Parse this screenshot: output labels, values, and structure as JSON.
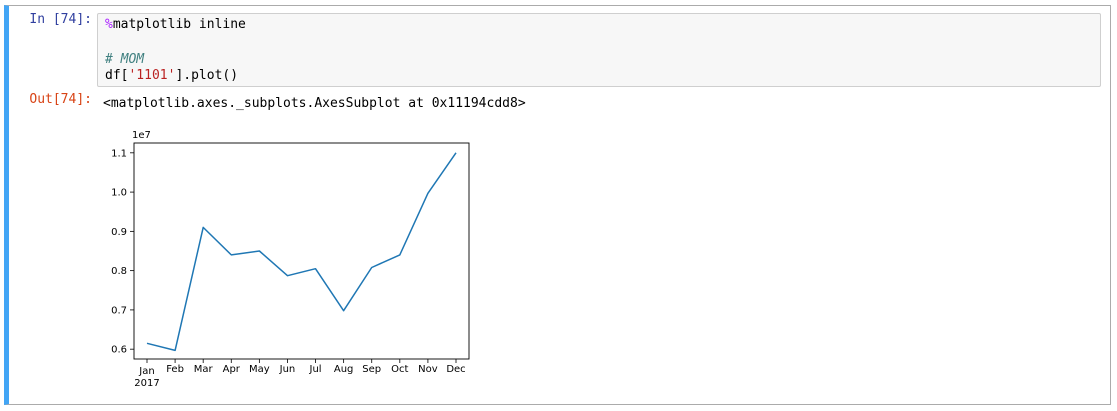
{
  "cell": {
    "in_prompt": "In [74]:",
    "out_prompt": "Out[74]:",
    "code_lines": [
      {
        "parts": [
          {
            "cls": "magic",
            "text": "%"
          },
          {
            "cls": "",
            "text": "matplotlib inline"
          }
        ]
      },
      {
        "parts": []
      },
      {
        "parts": [
          {
            "cls": "comment",
            "text": "# MOM"
          }
        ]
      },
      {
        "parts": [
          {
            "cls": "",
            "text": "df["
          },
          {
            "cls": "str",
            "text": "'1101'"
          },
          {
            "cls": "",
            "text": "].plot()"
          }
        ]
      }
    ],
    "output_text": "<matplotlib.axes._subplots.AxesSubplot at 0x11194cdd8>"
  },
  "chart_data": {
    "type": "line",
    "title": "",
    "xlabel": "",
    "ylabel": "",
    "categories": [
      "Jan",
      "Feb",
      "Mar",
      "Apr",
      "May",
      "Jun",
      "Jul",
      "Aug",
      "Sep",
      "Oct",
      "Nov",
      "Dec"
    ],
    "year_label": "2017",
    "offset_label": "1e7",
    "values": [
      6150000,
      5970000,
      9100000,
      8400000,
      8500000,
      7870000,
      8050000,
      6980000,
      8080000,
      8400000,
      9970000,
      11000000
    ],
    "ylim": [
      5750000,
      11250000
    ],
    "yticks": [
      6000000,
      7000000,
      8000000,
      9000000,
      10000000,
      11000000
    ],
    "ytick_labels": [
      "0.6",
      "0.7",
      "0.8",
      "0.9",
      "1.0",
      "1.1"
    ],
    "line_color": "#1f77b4",
    "grid": false,
    "legend": false
  }
}
